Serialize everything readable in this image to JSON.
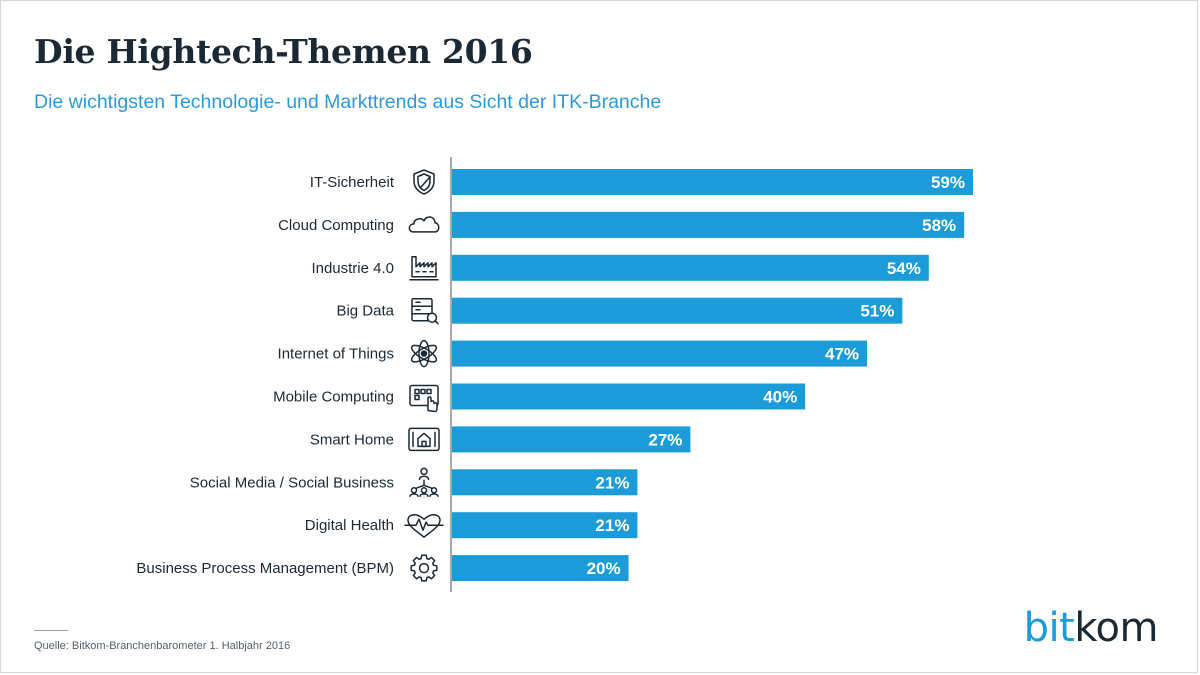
{
  "header": {
    "title": "Die Hightech-Themen 2016",
    "subtitle": "Die wichtigsten Technologie- und Markttrends aus Sicht der ITK-Branche"
  },
  "footer": {
    "source": "Quelle: Bitkom-Branchenbarometer 1. Halbjahr 2016"
  },
  "logo": {
    "part1": "bit",
    "part2": "kom"
  },
  "colors": {
    "bar": "#1b9bd7",
    "bar_label": "#ffffff",
    "title": "#1b2935",
    "subtitle": "#2b9ad8",
    "axis": "#7a7a7a",
    "icon": "#1b2935"
  },
  "chart_data": {
    "type": "bar",
    "orientation": "horizontal",
    "categories": [
      "IT-Sicherheit",
      "Cloud Computing",
      "Industrie 4.0",
      "Big Data",
      "Internet of Things",
      "Mobile Computing",
      "Smart Home",
      "Social Media / Social Business",
      "Digital Health",
      "Business Process Management (BPM)"
    ],
    "values": [
      59,
      58,
      54,
      51,
      47,
      40,
      27,
      21,
      21,
      20
    ],
    "value_labels": [
      "59%",
      "58%",
      "54%",
      "51%",
      "47%",
      "40%",
      "27%",
      "21%",
      "21%",
      "20%"
    ],
    "icons": [
      "shield-icon",
      "cloud-icon",
      "factory-icon",
      "server-search-icon",
      "atom-icon",
      "tablet-touch-icon",
      "smart-home-tablet-icon",
      "people-network-icon",
      "heart-pulse-icon",
      "gear-icon"
    ],
    "xlim": [
      0,
      59
    ],
    "grid": false,
    "legend": "none"
  }
}
